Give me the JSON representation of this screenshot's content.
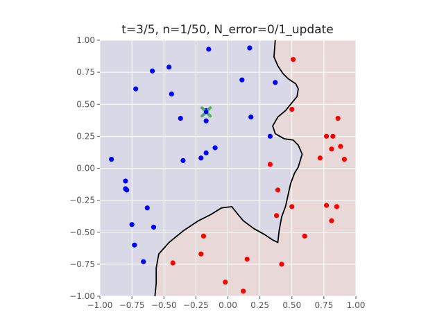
{
  "chart_data": {
    "type": "scatter",
    "title": "t=3/5, n=1/50, N_error=0/1_update",
    "xlabel": "",
    "ylabel": "",
    "xlim": [
      -1.0,
      1.0
    ],
    "ylim": [
      -1.0,
      1.0
    ],
    "grid": true,
    "x_ticks": [
      "−1.00",
      "−0.75",
      "−0.50",
      "−0.25",
      "0.00",
      "0.25",
      "0.50",
      "0.75",
      "1.00"
    ],
    "y_ticks": [
      "1.00",
      "0.75",
      "0.50",
      "0.25",
      "0.00",
      "−0.25",
      "−0.50",
      "−0.75",
      "−1.00"
    ],
    "x_tick_values": [
      -1.0,
      -0.75,
      -0.5,
      -0.25,
      0.0,
      0.25,
      0.5,
      0.75,
      1.0
    ],
    "y_tick_values": [
      1.0,
      0.75,
      0.5,
      0.25,
      0.0,
      -0.25,
      -0.5,
      -0.75,
      -1.0
    ],
    "colors": {
      "class_blue": "#0000ff",
      "class_red": "#ff0000",
      "region_blue": "#d8d8e6",
      "region_red": "#e8d8d8",
      "boundary": "#000000",
      "highlight": "#55a868"
    },
    "series": [
      {
        "color": "#0000ff",
        "points": [
          [
            -0.15,
            0.93
          ],
          [
            0.17,
            0.94
          ],
          [
            -0.59,
            0.76
          ],
          [
            -0.46,
            0.79
          ],
          [
            -0.72,
            0.62
          ],
          [
            -0.44,
            0.58
          ],
          [
            0.11,
            0.69
          ],
          [
            0.37,
            0.67
          ],
          [
            -0.17,
            0.45
          ],
          [
            -0.17,
            0.37
          ],
          [
            -0.37,
            0.39
          ],
          [
            0.18,
            0.4
          ],
          [
            0.33,
            0.25
          ],
          [
            -0.91,
            0.07
          ],
          [
            -0.35,
            0.06
          ],
          [
            -0.21,
            0.08
          ],
          [
            -0.17,
            0.12
          ],
          [
            -0.1,
            0.16
          ],
          [
            -0.8,
            -0.1
          ],
          [
            -0.8,
            -0.16
          ],
          [
            -0.79,
            -0.17
          ],
          [
            -0.63,
            -0.31
          ],
          [
            -0.75,
            -0.44
          ],
          [
            -0.58,
            -0.46
          ],
          [
            -0.73,
            -0.6
          ],
          [
            -0.66,
            -0.73
          ]
        ]
      },
      {
        "color": "#ff0000",
        "points": [
          [
            0.51,
            0.85
          ],
          [
            0.5,
            0.46
          ],
          [
            0.86,
            0.39
          ],
          [
            0.77,
            0.25
          ],
          [
            0.82,
            0.25
          ],
          [
            0.88,
            0.17
          ],
          [
            0.81,
            0.15
          ],
          [
            0.72,
            0.08
          ],
          [
            0.91,
            0.07
          ],
          [
            0.33,
            0.03
          ],
          [
            0.39,
            -0.17
          ],
          [
            0.5,
            -0.3
          ],
          [
            0.77,
            -0.29
          ],
          [
            0.85,
            -0.3
          ],
          [
            0.38,
            -0.37
          ],
          [
            0.81,
            -0.41
          ],
          [
            -0.19,
            -0.53
          ],
          [
            0.6,
            -0.53
          ],
          [
            -0.21,
            -0.67
          ],
          [
            0.15,
            -0.71
          ],
          [
            -0.43,
            -0.74
          ],
          [
            0.42,
            -0.75
          ],
          [
            -0.02,
            -0.89
          ],
          [
            0.12,
            -0.96
          ]
        ]
      }
    ],
    "highlight_point": [
      -0.17,
      0.44
    ],
    "decision_boundary": [
      [
        0.37,
        1.0
      ],
      [
        0.36,
        0.87
      ],
      [
        0.39,
        0.8
      ],
      [
        0.43,
        0.74
      ],
      [
        0.47,
        0.7
      ],
      [
        0.53,
        0.66
      ],
      [
        0.55,
        0.62
      ],
      [
        0.54,
        0.56
      ],
      [
        0.45,
        0.45
      ],
      [
        0.39,
        0.4
      ],
      [
        0.35,
        0.33
      ],
      [
        0.37,
        0.27
      ],
      [
        0.44,
        0.23
      ],
      [
        0.51,
        0.22
      ],
      [
        0.55,
        0.18
      ],
      [
        0.58,
        0.11
      ],
      [
        0.55,
        0.01
      ],
      [
        0.52,
        -0.04
      ],
      [
        0.49,
        -0.12
      ],
      [
        0.47,
        -0.21
      ],
      [
        0.45,
        -0.3
      ],
      [
        0.42,
        -0.38
      ],
      [
        0.4,
        -0.49
      ],
      [
        0.39,
        -0.58
      ],
      [
        0.35,
        -0.56
      ],
      [
        0.29,
        -0.52
      ],
      [
        0.2,
        -0.47
      ],
      [
        0.12,
        -0.41
      ],
      [
        0.07,
        -0.35
      ],
      [
        0.03,
        -0.3
      ],
      [
        -0.05,
        -0.31
      ],
      [
        -0.13,
        -0.36
      ],
      [
        -0.23,
        -0.41
      ],
      [
        -0.35,
        -0.49
      ],
      [
        -0.46,
        -0.58
      ],
      [
        -0.54,
        -0.67
      ],
      [
        -0.56,
        -0.78
      ],
      [
        -0.56,
        -0.9
      ],
      [
        -0.57,
        -1.0
      ]
    ]
  }
}
